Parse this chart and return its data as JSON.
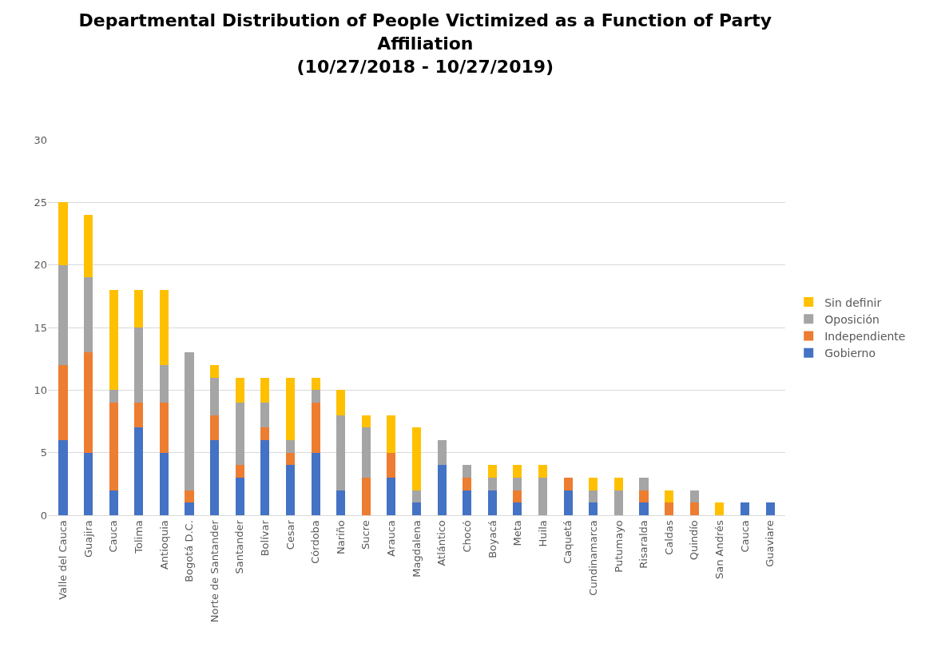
{
  "chart_data": {
    "type": "bar",
    "stacked": true,
    "title": "Departmental Distribution of People Victimized as a Function of Party Affiliation\n(10/27/2018 - 10/27/2019)",
    "categories": [
      "Valle del Cauca",
      "Guajira",
      "Cauca",
      "Tolima",
      "Antioquia",
      "Bogotá D.C.",
      "Norte de Santander",
      "Santander",
      "Bolívar",
      "Cesar",
      "Córdoba",
      "Nariño",
      "Sucre",
      "Arauca",
      "Magdalena",
      "Atlántico",
      "Chocó",
      "Boyacá",
      "Meta",
      "Huila",
      "Caquetá",
      "Cundinamarca",
      "Putumayo",
      "Risaralda",
      "Caldas",
      "Quindío",
      "San Andrés",
      "Cauca",
      "Guaviare"
    ],
    "series": [
      {
        "name": "Gobierno",
        "color": "#4472c4",
        "values": [
          6,
          5,
          2,
          7,
          5,
          1,
          6,
          3,
          6,
          4,
          5,
          2,
          0,
          3,
          1,
          4,
          2,
          2,
          1,
          0,
          2,
          1,
          0,
          1,
          0,
          0,
          0,
          1,
          1
        ]
      },
      {
        "name": "Independiente",
        "color": "#ed7d31",
        "values": [
          6,
          8,
          7,
          2,
          4,
          1,
          2,
          1,
          1,
          1,
          4,
          0,
          3,
          2,
          0,
          0,
          1,
          0,
          1,
          0,
          1,
          0,
          0,
          1,
          1,
          1,
          0,
          0,
          0
        ]
      },
      {
        "name": "Oposición",
        "color": "#a5a5a5",
        "values": [
          8,
          6,
          1,
          6,
          3,
          11,
          3,
          5,
          2,
          1,
          1,
          6,
          4,
          0,
          1,
          2,
          1,
          1,
          1,
          3,
          0,
          1,
          2,
          1,
          0,
          1,
          0,
          0,
          0
        ]
      },
      {
        "name": "Sin definir",
        "color": "#ffc000",
        "values": [
          5,
          5,
          8,
          3,
          6,
          0,
          1,
          2,
          2,
          5,
          1,
          2,
          1,
          3,
          5,
          0,
          0,
          1,
          1,
          1,
          0,
          1,
          1,
          0,
          1,
          0,
          1,
          0,
          0
        ]
      }
    ],
    "ylim": [
      0,
      30
    ],
    "yticks": [
      0,
      5,
      10,
      15,
      20,
      25,
      30
    ],
    "grid": "y",
    "legend": "right"
  }
}
